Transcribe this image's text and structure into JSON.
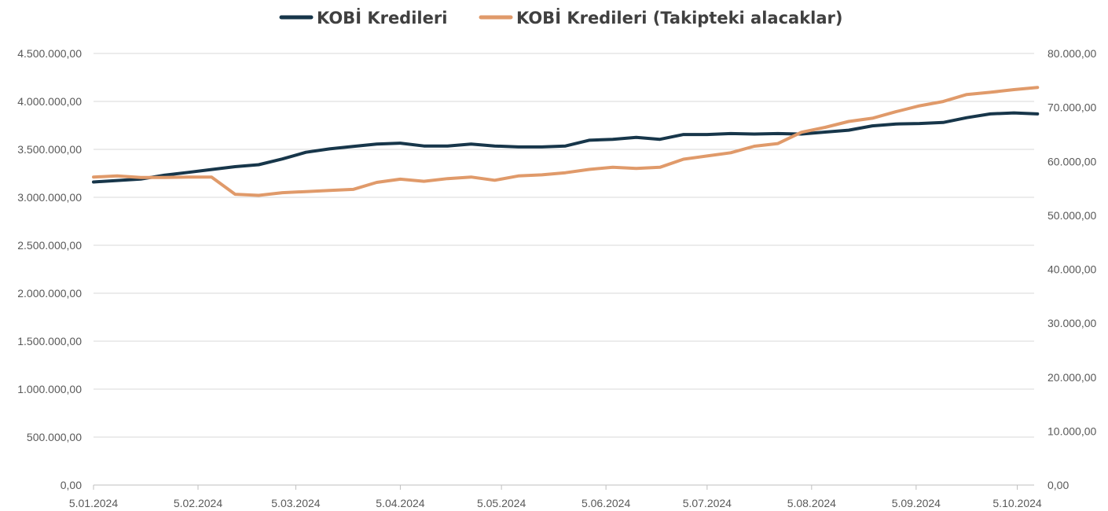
{
  "chart_data": {
    "type": "line",
    "title": "",
    "xlabel": "",
    "ylabel": "",
    "legend_position": "top-center",
    "grid": true,
    "x_start": "2024-01-05",
    "x_end": "2024-10-10",
    "x_tick_labels": [
      {
        "date": "2024-01-05",
        "label": "5.01.2024"
      },
      {
        "date": "2024-02-05",
        "label": "5.02.2024"
      },
      {
        "date": "2024-03-05",
        "label": "5.03.2024"
      },
      {
        "date": "2024-04-05",
        "label": "5.04.2024"
      },
      {
        "date": "2024-05-05",
        "label": "5.05.2024"
      },
      {
        "date": "2024-06-05",
        "label": "5.06.2024"
      },
      {
        "date": "2024-07-05",
        "label": "5.07.2024"
      },
      {
        "date": "2024-08-05",
        "label": "5.08.2024"
      },
      {
        "date": "2024-09-05",
        "label": "5.09.2024"
      },
      {
        "date": "2024-10-05",
        "label": "5.10.2024"
      }
    ],
    "y_left": {
      "min": 0,
      "max": 4500000,
      "ticks": [
        {
          "value": 0,
          "label": "0,00"
        },
        {
          "value": 500000,
          "label": "500.000,00"
        },
        {
          "value": 1000000,
          "label": "1.000.000,00"
        },
        {
          "value": 1500000,
          "label": "1.500.000,00"
        },
        {
          "value": 2000000,
          "label": "2.000.000,00"
        },
        {
          "value": 2500000,
          "label": "2.500.000,00"
        },
        {
          "value": 3000000,
          "label": "3.000.000,00"
        },
        {
          "value": 3500000,
          "label": "3.500.000,00"
        },
        {
          "value": 4000000,
          "label": "4.000.000,00"
        },
        {
          "value": 4500000,
          "label": "4.500.000,00"
        }
      ]
    },
    "y_right": {
      "min": 0,
      "max": 80000,
      "ticks": [
        {
          "value": 0,
          "label": "0,00"
        },
        {
          "value": 10000,
          "label": "10.000,00"
        },
        {
          "value": 20000,
          "label": "20.000,00"
        },
        {
          "value": 30000,
          "label": "30.000,00"
        },
        {
          "value": 40000,
          "label": "40.000,00"
        },
        {
          "value": 50000,
          "label": "50.000,00"
        },
        {
          "value": 60000,
          "label": "60.000,00"
        },
        {
          "value": 70000,
          "label": "70.000,00"
        },
        {
          "value": 80000,
          "label": "80.000,00"
        }
      ]
    },
    "x": [
      "2024-01-05",
      "2024-01-12",
      "2024-01-19",
      "2024-01-26",
      "2024-02-02",
      "2024-02-09",
      "2024-02-16",
      "2024-02-23",
      "2024-03-01",
      "2024-03-08",
      "2024-03-15",
      "2024-03-22",
      "2024-03-29",
      "2024-04-05",
      "2024-04-12",
      "2024-04-19",
      "2024-04-26",
      "2024-05-03",
      "2024-05-10",
      "2024-05-17",
      "2024-05-24",
      "2024-05-31",
      "2024-06-07",
      "2024-06-14",
      "2024-06-21",
      "2024-06-28",
      "2024-07-05",
      "2024-07-12",
      "2024-07-19",
      "2024-07-26",
      "2024-08-02",
      "2024-08-09",
      "2024-08-16",
      "2024-08-23",
      "2024-08-30",
      "2024-09-06",
      "2024-09-13",
      "2024-09-20",
      "2024-09-27",
      "2024-10-04",
      "2024-10-11"
    ],
    "series": [
      {
        "name": "KOBİ Kredileri",
        "axis": "left",
        "color": "#17364a",
        "values": [
          3160000,
          3175000,
          3190000,
          3230000,
          3260000,
          3290000,
          3320000,
          3340000,
          3400000,
          3470000,
          3505000,
          3530000,
          3555000,
          3565000,
          3535000,
          3535000,
          3555000,
          3535000,
          3525000,
          3525000,
          3535000,
          3595000,
          3605000,
          3625000,
          3605000,
          3655000,
          3655000,
          3665000,
          3660000,
          3665000,
          3660000,
          3680000,
          3700000,
          3745000,
          3765000,
          3770000,
          3780000,
          3830000,
          3870000,
          3880000,
          3870000
        ]
      },
      {
        "name": "KOBİ Kredileri (Takipteki alacaklar)",
        "axis": "right",
        "color": "#e09a6a",
        "values": [
          57100,
          57300,
          57000,
          57000,
          57100,
          57100,
          53900,
          53700,
          54200,
          54400,
          54600,
          54800,
          56100,
          56700,
          56300,
          56800,
          57100,
          56500,
          57300,
          57500,
          57900,
          58500,
          58900,
          58700,
          58900,
          60400,
          61000,
          61600,
          62800,
          63300,
          65400,
          66300,
          67400,
          68000,
          69200,
          70300,
          71100,
          72400,
          72800,
          73300,
          73700
        ]
      }
    ]
  }
}
